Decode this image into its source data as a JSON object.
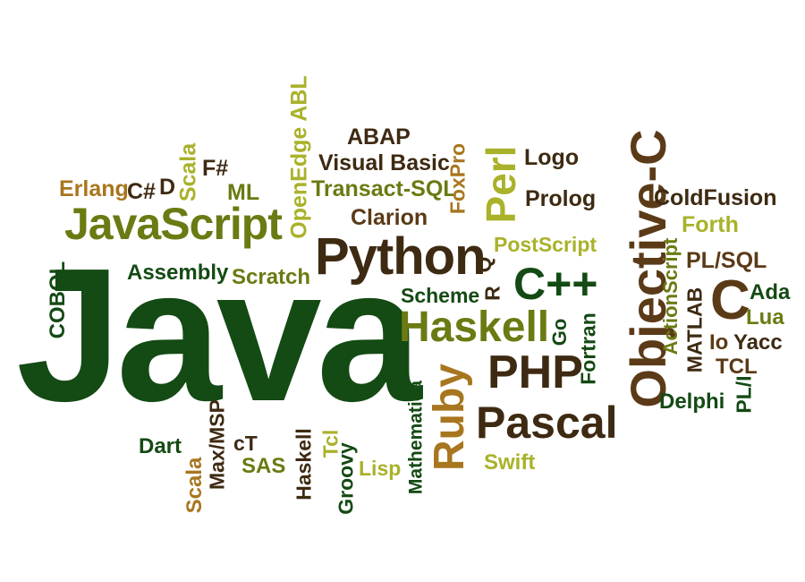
{
  "palette": {
    "dark_green": "#144a14",
    "olive": "#6b7a12",
    "olive_light": "#93a020",
    "yellow_green": "#a9b22a",
    "brown": "#5b3a17",
    "dark_brown": "#3e2a12",
    "gold_brown": "#a8761f",
    "lime": "#b5bd2a"
  },
  "words": {
    "java": "Java",
    "javascript": "JavaScript",
    "python": "Python",
    "objective_c": "Objective-C",
    "haskell_big": "Haskell",
    "pascal": "Pascal",
    "php": "PHP",
    "ruby": "Ruby",
    "cpp": "C++",
    "perl": "Perl",
    "c": "C",
    "cobol": "COBOL",
    "erlang": "Erlang",
    "csharp": "C#",
    "d": "D",
    "scala_top": "Scala",
    "fsharp": "F#",
    "ml": "ML",
    "openedge": "OpenEdge ABL",
    "abap": "ABAP",
    "visual_basic": "Visual Basic",
    "transact_sql": "Transact-SQL",
    "clarion": "Clarion",
    "foxpro": "FoxPro",
    "logo": "Logo",
    "prolog": "Prolog",
    "coldfusion": "ColdFusion",
    "forth": "Forth",
    "postscript": "PostScript",
    "plsql": "PL/SQL",
    "assembly": "Assembly",
    "scratch": "Scratch",
    "scheme": "Scheme",
    "r": "R",
    "q": "Q",
    "go": "Go",
    "fortran": "Fortran",
    "actionscript": "ActionScript",
    "matlab": "MATLAB",
    "ada": "Ada",
    "lua": "Lua",
    "io": "Io",
    "yacc": "Yacc",
    "tcl_right": "TCL",
    "delphi": "Delphi",
    "pli": "PL/I",
    "dart": "Dart",
    "scala_bottom": "Scala",
    "maxmsp": "Max/MSP",
    "ct": "cT",
    "sas": "SAS",
    "haskell_small": "Haskell",
    "tcl_small": "Tcl",
    "groovy": "Groovy",
    "lisp": "Lisp",
    "mathematica": "Mathematica",
    "swift": "Swift"
  }
}
